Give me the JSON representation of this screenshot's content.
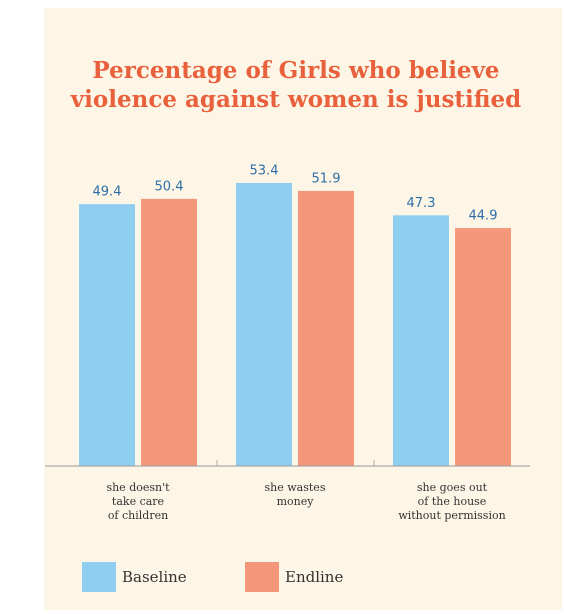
{
  "chart_data": {
    "type": "bar",
    "title": [
      "Percentage of Girls who believe",
      "violence against women is justified"
    ],
    "categories": [
      [
        "she doesn't",
        "take care",
        "of children"
      ],
      [
        "she wastes",
        "money"
      ],
      [
        "she goes out",
        "of the house",
        "without permission"
      ]
    ],
    "series": [
      {
        "name": "Baseline",
        "color": "#8fcdf1",
        "values": [
          49.4,
          53.4,
          47.3
        ]
      },
      {
        "name": "Endline",
        "color": "#f4977a",
        "values": [
          50.4,
          51.9,
          44.9
        ]
      }
    ],
    "legend": "bottom-left"
  }
}
